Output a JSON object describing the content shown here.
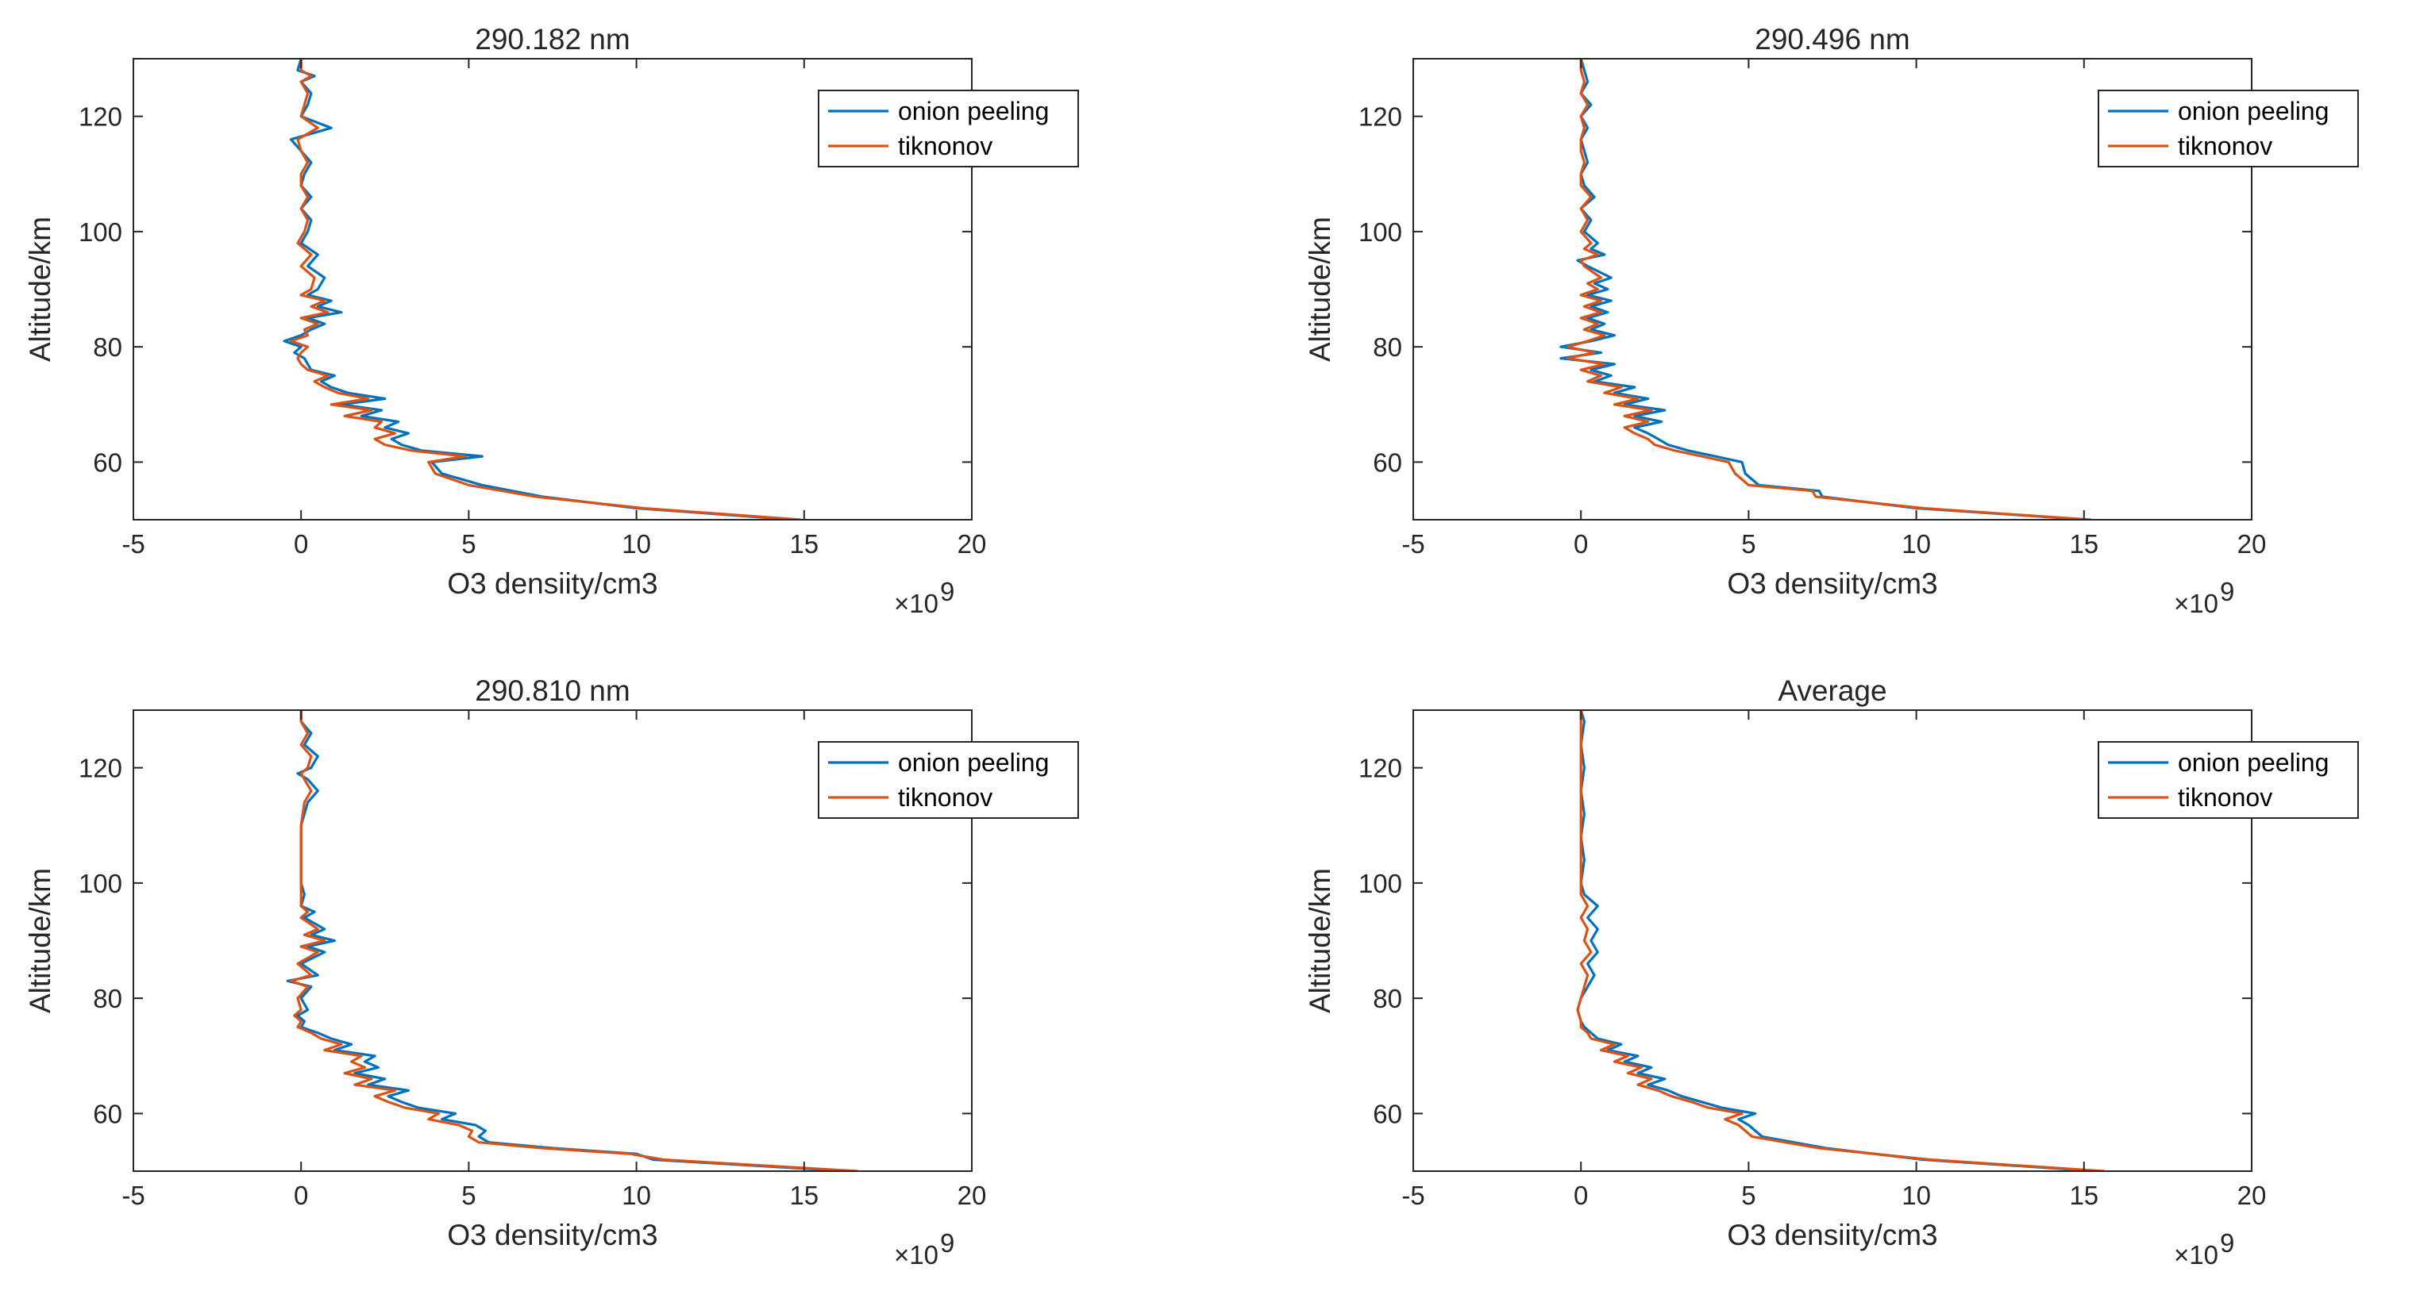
{
  "colors": {
    "onion": "#0072BD",
    "tik": "#D95319",
    "axis": "#262626"
  },
  "chart_data": [
    {
      "type": "line",
      "title": "290.182 nm",
      "xlabel": "O3 densiity/cm3",
      "ylabel": "Altitude/km",
      "x_multiplier": "×10",
      "x_exponent": "9",
      "xlim": [
        -5,
        20
      ],
      "ylim": [
        50,
        130
      ],
      "xticks": [
        -5,
        0,
        5,
        10,
        15,
        20
      ],
      "yticks": [
        60,
        80,
        100,
        120
      ],
      "legend": [
        "onion peeling",
        "tiknonov"
      ],
      "series": [
        {
          "name": "onion peeling",
          "y": [
            50,
            52,
            54,
            56,
            58,
            60,
            61,
            62,
            63,
            64,
            65,
            66,
            67,
            68,
            69,
            70,
            71,
            72,
            73,
            74,
            75,
            76,
            77,
            78,
            79,
            80,
            81,
            82,
            83,
            84,
            85,
            86,
            87,
            88,
            89,
            90,
            92,
            94,
            96,
            98,
            100,
            102,
            104,
            106,
            108,
            110,
            112,
            114,
            116,
            117,
            118,
            120,
            122,
            124,
            126,
            127,
            128,
            130
          ],
          "x": [
            14.7,
            10.0,
            7.2,
            5.4,
            4.2,
            3.9,
            5.4,
            3.6,
            3.0,
            2.7,
            3.2,
            2.5,
            2.9,
            1.8,
            2.4,
            1.2,
            2.5,
            1.4,
            0.9,
            0.6,
            1.0,
            0.3,
            0.2,
            0.1,
            -0.2,
            0.0,
            -0.5,
            0.0,
            0.3,
            0.7,
            0.2,
            1.2,
            0.5,
            0.9,
            0.2,
            0.5,
            0.7,
            0.2,
            0.5,
            0.0,
            0.2,
            0.3,
            0.0,
            0.3,
            0.0,
            0.1,
            0.3,
            0.0,
            -0.3,
            0.3,
            0.9,
            0.0,
            0.2,
            0.3,
            0.0,
            0.4,
            -0.1,
            0.0
          ]
        },
        {
          "name": "tiknonov",
          "y": [
            50,
            52,
            54,
            56,
            58,
            60,
            61,
            62,
            63,
            64,
            65,
            66,
            67,
            68,
            69,
            70,
            71,
            72,
            73,
            74,
            75,
            76,
            77,
            78,
            79,
            80,
            81,
            82,
            83,
            84,
            85,
            86,
            87,
            88,
            89,
            90,
            92,
            94,
            96,
            98,
            100,
            102,
            104,
            106,
            108,
            110,
            112,
            114,
            116,
            117,
            118,
            120,
            122,
            124,
            126,
            127,
            128,
            130
          ],
          "x": [
            14.9,
            10.2,
            7.0,
            5.0,
            4.0,
            3.8,
            4.9,
            3.3,
            2.5,
            2.2,
            2.8,
            2.2,
            2.4,
            1.3,
            2.1,
            0.9,
            2.0,
            1.1,
            0.7,
            0.4,
            0.8,
            0.2,
            0.0,
            -0.1,
            0.0,
            0.2,
            -0.3,
            0.2,
            0.1,
            0.5,
            0.0,
            0.8,
            0.3,
            0.7,
            0.0,
            0.3,
            0.4,
            0.0,
            0.3,
            -0.1,
            0.1,
            0.2,
            0.0,
            0.2,
            0.0,
            0.0,
            0.2,
            0.0,
            -0.1,
            0.2,
            0.5,
            0.0,
            0.1,
            0.2,
            0.0,
            0.3,
            0.0,
            0.0
          ]
        }
      ]
    },
    {
      "type": "line",
      "title": "290.496 nm",
      "xlabel": "O3 densiity/cm3",
      "ylabel": "Altitude/km",
      "x_multiplier": "×10",
      "x_exponent": "9",
      "xlim": [
        -5,
        20
      ],
      "ylim": [
        50,
        130
      ],
      "xticks": [
        -5,
        0,
        5,
        10,
        15,
        20
      ],
      "yticks": [
        60,
        80,
        100,
        120
      ],
      "legend": [
        "onion peeling",
        "tiknonov"
      ],
      "series": [
        {
          "name": "onion peeling",
          "y": [
            50,
            52,
            54,
            55,
            56,
            58,
            60,
            61,
            62,
            63,
            64,
            65,
            66,
            67,
            68,
            69,
            70,
            71,
            72,
            73,
            74,
            75,
            76,
            77,
            78,
            79,
            80,
            81,
            82,
            83,
            84,
            85,
            86,
            87,
            88,
            89,
            90,
            91,
            92,
            94,
            95,
            96,
            97,
            98,
            100,
            102,
            104,
            106,
            108,
            110,
            112,
            114,
            116,
            118,
            120,
            122,
            124,
            126,
            128,
            130
          ],
          "x": [
            15.1,
            10.0,
            7.2,
            7.1,
            5.3,
            4.9,
            4.8,
            4.0,
            3.2,
            2.6,
            2.3,
            2.0,
            1.6,
            2.4,
            1.6,
            2.5,
            1.3,
            2.0,
            1.0,
            1.6,
            0.4,
            0.9,
            0.3,
            1.0,
            -0.6,
            0.6,
            -0.6,
            0.3,
            1.0,
            0.3,
            0.7,
            0.2,
            0.8,
            0.3,
            0.9,
            0.2,
            0.8,
            0.4,
            0.9,
            0.2,
            -0.1,
            0.7,
            0.3,
            0.5,
            0.1,
            0.3,
            0.0,
            0.4,
            0.1,
            0.0,
            0.2,
            0.1,
            0.0,
            0.2,
            0.0,
            0.3,
            0.0,
            0.2,
            0.1,
            0.0
          ]
        },
        {
          "name": "tiknonov",
          "y": [
            50,
            52,
            54,
            55,
            56,
            58,
            60,
            61,
            62,
            63,
            64,
            65,
            66,
            67,
            68,
            69,
            70,
            71,
            72,
            73,
            74,
            75,
            76,
            77,
            78,
            79,
            80,
            81,
            82,
            83,
            84,
            85,
            86,
            87,
            88,
            89,
            90,
            91,
            92,
            94,
            95,
            96,
            97,
            98,
            100,
            102,
            104,
            106,
            108,
            110,
            112,
            114,
            116,
            118,
            120,
            122,
            124,
            126,
            128,
            130
          ],
          "x": [
            15.2,
            10.2,
            7.0,
            6.9,
            5.0,
            4.6,
            4.4,
            3.6,
            2.8,
            2.2,
            2.0,
            1.6,
            1.3,
            2.0,
            1.3,
            2.1,
            1.0,
            1.7,
            0.7,
            1.2,
            0.2,
            0.6,
            0.0,
            0.7,
            -0.4,
            0.4,
            -0.4,
            0.2,
            0.7,
            0.1,
            0.5,
            0.0,
            0.6,
            0.1,
            0.6,
            0.0,
            0.5,
            0.2,
            0.6,
            0.1,
            0.0,
            0.5,
            0.1,
            0.3,
            0.0,
            0.2,
            0.0,
            0.3,
            0.0,
            0.0,
            0.1,
            0.0,
            0.0,
            0.1,
            0.0,
            0.2,
            0.0,
            0.1,
            0.0,
            0.0
          ]
        }
      ]
    },
    {
      "type": "line",
      "title": "290.810 nm",
      "xlabel": "O3 densiity/cm3",
      "ylabel": "Altitude/km",
      "x_multiplier": "×10",
      "x_exponent": "9",
      "xlim": [
        -5,
        20
      ],
      "ylim": [
        50,
        130
      ],
      "xticks": [
        -5,
        0,
        5,
        10,
        15,
        20
      ],
      "yticks": [
        60,
        80,
        100,
        120
      ],
      "legend": [
        "onion peeling",
        "tiknonov"
      ],
      "series": [
        {
          "name": "onion peeling",
          "y": [
            50,
            52,
            53,
            54,
            55,
            56,
            57,
            58,
            59,
            60,
            61,
            62,
            63,
            64,
            65,
            66,
            67,
            68,
            69,
            70,
            71,
            72,
            73,
            74,
            75,
            76,
            77,
            78,
            80,
            82,
            83,
            84,
            86,
            88,
            89,
            90,
            91,
            92,
            94,
            95,
            96,
            98,
            100,
            105,
            110,
            114,
            116,
            118,
            119,
            120,
            122,
            124,
            126,
            128,
            130
          ],
          "x": [
            16.3,
            10.5,
            10.0,
            7.5,
            5.6,
            5.3,
            5.5,
            5.2,
            4.2,
            4.6,
            3.5,
            3.0,
            2.6,
            3.2,
            2.0,
            2.5,
            1.6,
            2.3,
            1.9,
            2.2,
            1.0,
            1.5,
            0.9,
            0.5,
            0.0,
            0.1,
            -0.1,
            0.2,
            0.0,
            0.3,
            -0.4,
            0.5,
            0.0,
            0.7,
            0.2,
            1.0,
            0.3,
            0.7,
            0.1,
            0.4,
            0.0,
            0.1,
            0.0,
            0.0,
            0.0,
            0.2,
            0.5,
            0.2,
            -0.1,
            0.3,
            0.5,
            0.1,
            0.3,
            0.0,
            0.0
          ]
        },
        {
          "name": "tiknonov",
          "y": [
            50,
            52,
            53,
            54,
            55,
            56,
            57,
            58,
            59,
            60,
            61,
            62,
            63,
            64,
            65,
            66,
            67,
            68,
            69,
            70,
            71,
            72,
            73,
            74,
            75,
            76,
            77,
            78,
            80,
            82,
            83,
            84,
            86,
            88,
            89,
            90,
            91,
            92,
            94,
            95,
            96,
            98,
            100,
            105,
            110,
            114,
            116,
            118,
            119,
            120,
            122,
            124,
            126,
            128,
            130
          ],
          "x": [
            16.6,
            10.8,
            9.8,
            7.2,
            5.3,
            5.0,
            5.1,
            4.7,
            3.8,
            4.1,
            3.1,
            2.6,
            2.2,
            2.8,
            1.6,
            2.1,
            1.3,
            1.9,
            1.5,
            1.8,
            0.7,
            1.2,
            0.6,
            0.3,
            -0.1,
            0.0,
            -0.2,
            0.0,
            -0.1,
            0.2,
            -0.3,
            0.3,
            -0.1,
            0.5,
            0.0,
            0.7,
            0.1,
            0.5,
            0.0,
            0.2,
            0.0,
            0.0,
            0.0,
            0.0,
            0.0,
            0.1,
            0.3,
            0.1,
            0.0,
            0.2,
            0.3,
            0.0,
            0.2,
            0.0,
            0.0
          ]
        }
      ]
    },
    {
      "type": "line",
      "title": "Average",
      "xlabel": "O3 densiity/cm3",
      "ylabel": "Altitude/km",
      "x_multiplier": "×10",
      "x_exponent": "9",
      "xlim": [
        -5,
        20
      ],
      "ylim": [
        50,
        130
      ],
      "xticks": [
        -5,
        0,
        5,
        10,
        15,
        20
      ],
      "yticks": [
        60,
        80,
        100,
        120
      ],
      "legend": [
        "onion peeling",
        "tiknonov"
      ],
      "series": [
        {
          "name": "onion peeling",
          "y": [
            50,
            52,
            54,
            56,
            58,
            59,
            60,
            61,
            62,
            63,
            64,
            65,
            66,
            67,
            68,
            69,
            70,
            71,
            72,
            73,
            74,
            75,
            76,
            78,
            80,
            82,
            84,
            86,
            88,
            90,
            92,
            94,
            96,
            98,
            100,
            104,
            108,
            112,
            116,
            120,
            124,
            128,
            130
          ],
          "x": [
            15.4,
            10.2,
            7.3,
            5.4,
            5.0,
            4.7,
            5.2,
            4.2,
            3.6,
            3.0,
            2.6,
            2.0,
            2.5,
            1.7,
            2.1,
            1.3,
            1.7,
            0.8,
            1.2,
            0.5,
            0.3,
            0.1,
            0.0,
            -0.1,
            0.0,
            0.2,
            0.4,
            0.2,
            0.5,
            0.3,
            0.5,
            0.2,
            0.5,
            0.1,
            0.0,
            0.1,
            0.0,
            0.1,
            0.0,
            0.1,
            0.0,
            0.1,
            0.0
          ]
        },
        {
          "name": "tiknonov",
          "y": [
            50,
            52,
            54,
            56,
            58,
            59,
            60,
            61,
            62,
            63,
            64,
            65,
            66,
            67,
            68,
            69,
            70,
            71,
            72,
            73,
            74,
            75,
            76,
            78,
            80,
            82,
            84,
            86,
            88,
            90,
            92,
            94,
            96,
            98,
            100,
            104,
            108,
            112,
            116,
            120,
            124,
            128,
            130
          ],
          "x": [
            15.6,
            10.4,
            7.1,
            5.1,
            4.7,
            4.3,
            4.8,
            3.8,
            3.3,
            2.7,
            2.3,
            1.7,
            2.1,
            1.4,
            1.8,
            1.0,
            1.4,
            0.6,
            1.0,
            0.3,
            0.2,
            0.0,
            0.0,
            -0.1,
            0.0,
            0.1,
            0.2,
            0.0,
            0.3,
            0.1,
            0.2,
            0.0,
            0.2,
            0.0,
            0.0,
            0.0,
            0.0,
            0.0,
            0.0,
            0.0,
            0.0,
            0.0,
            0.0
          ]
        }
      ]
    }
  ]
}
